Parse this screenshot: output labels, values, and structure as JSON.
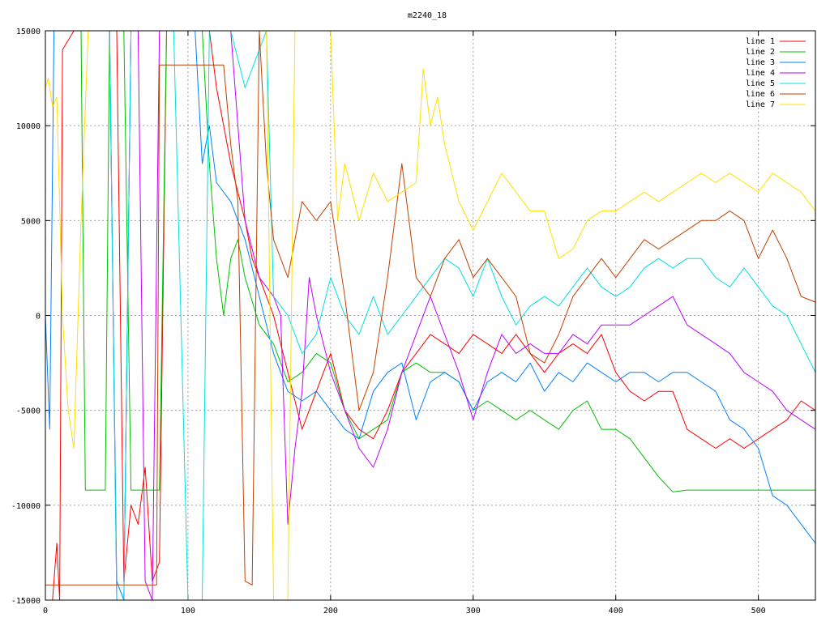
{
  "chart_data": {
    "type": "line",
    "title": "m2240_18",
    "xlabel": "",
    "ylabel": "",
    "xlim": [
      0,
      540
    ],
    "ylim": [
      -15000,
      15000
    ],
    "xticks": [
      0,
      100,
      200,
      300,
      400,
      500
    ],
    "yticks": [
      -15000,
      -10000,
      -5000,
      0,
      5000,
      10000,
      15000
    ],
    "xtick_labels": [
      "0",
      "100",
      "200",
      "300",
      "400",
      "500"
    ],
    "ytick_labels": [
      "-15000",
      "-10000",
      "-5000",
      "0",
      "5000",
      "10000",
      "15000"
    ],
    "grid": true,
    "legend_position": "top-right",
    "series": [
      {
        "name": "line 1",
        "color": "#ff0000",
        "x": [
          0,
          5,
          8,
          10,
          12,
          20,
          30,
          40,
          50,
          55,
          60,
          65,
          70,
          75,
          80,
          85,
          90,
          95,
          100,
          110,
          115,
          120,
          130,
          140,
          145,
          150,
          160,
          170,
          180,
          190,
          200,
          210,
          220,
          230,
          240,
          250,
          260,
          270,
          280,
          290,
          300,
          310,
          320,
          330,
          340,
          350,
          360,
          370,
          380,
          390,
          400,
          410,
          420,
          430,
          440,
          450,
          460,
          470,
          480,
          490,
          500,
          510,
          520,
          530,
          540
        ],
        "y": [
          -15000,
          -15000,
          -12000,
          -15000,
          14000,
          15000,
          15000,
          15000,
          15000,
          -14000,
          -10000,
          -11000,
          -8000,
          -14000,
          -13000,
          15000,
          15000,
          15000,
          15000,
          15000,
          15000,
          12000,
          8000,
          5000,
          3000,
          2000,
          0,
          -3000,
          -6000,
          -4000,
          -2000,
          -5000,
          -6000,
          -6500,
          -5000,
          -3000,
          -2000,
          -1000,
          -1500,
          -2000,
          -1000,
          -1500,
          -2000,
          -1000,
          -2000,
          -3000,
          -2000,
          -1500,
          -2000,
          -1000,
          -3000,
          -4000,
          -4500,
          -4000,
          -4000,
          -6000,
          -6500,
          -7000,
          -6500,
          -7000,
          -6500,
          -6000,
          -5500,
          -4500,
          -5000
        ]
      },
      {
        "name": "line 2",
        "color": "#00c000",
        "x": [
          0,
          5,
          10,
          15,
          20,
          25,
          28,
          35,
          42,
          45,
          50,
          55,
          60,
          65,
          70,
          75,
          80,
          85,
          90,
          95,
          100,
          105,
          110,
          115,
          120,
          125,
          130,
          135,
          140,
          150,
          160,
          170,
          180,
          190,
          200,
          210,
          220,
          230,
          240,
          250,
          260,
          270,
          280,
          290,
          300,
          310,
          320,
          330,
          340,
          350,
          360,
          370,
          380,
          390,
          400,
          410,
          420,
          430,
          440,
          450,
          460,
          480,
          500,
          520,
          540
        ],
        "y": [
          15000,
          15000,
          15000,
          15000,
          15000,
          15000,
          -9200,
          -9200,
          -9200,
          15000,
          15000,
          15000,
          -9200,
          -9200,
          -9200,
          -9200,
          -9200,
          15000,
          15000,
          15000,
          15000,
          15000,
          15000,
          8000,
          3000,
          0,
          3000,
          4000,
          2000,
          -500,
          -1500,
          -3500,
          -3000,
          -2000,
          -2500,
          -5000,
          -6500,
          -6000,
          -5500,
          -3000,
          -2500,
          -3000,
          -3000,
          -3500,
          -5000,
          -4500,
          -5000,
          -5500,
          -5000,
          -5500,
          -6000,
          -5000,
          -4500,
          -6000,
          -6000,
          -6500,
          -7500,
          -8500,
          -9300,
          -9200,
          -9200,
          -9200,
          -9200,
          -9200,
          -9200
        ]
      },
      {
        "name": "line 3",
        "color": "#0080ff",
        "x": [
          0,
          3,
          6,
          10,
          20,
          30,
          40,
          45,
          50,
          55,
          60,
          70,
          80,
          90,
          100,
          105,
          110,
          115,
          120,
          130,
          140,
          150,
          160,
          170,
          180,
          190,
          200,
          210,
          220,
          230,
          240,
          250,
          260,
          270,
          280,
          290,
          300,
          310,
          320,
          330,
          340,
          350,
          360,
          370,
          380,
          390,
          400,
          410,
          420,
          430,
          440,
          450,
          460,
          470,
          480,
          490,
          500,
          510,
          520,
          530,
          540
        ],
        "y": [
          0,
          -6000,
          15000,
          15000,
          15000,
          15000,
          15000,
          15000,
          -14000,
          -15000,
          15000,
          15000,
          15000,
          15000,
          15000,
          15000,
          8000,
          10000,
          7000,
          6000,
          4000,
          1000,
          -2000,
          -4000,
          -4500,
          -4000,
          -5000,
          -6000,
          -6500,
          -4000,
          -3000,
          -2500,
          -5500,
          -3500,
          -3000,
          -3500,
          -5000,
          -3500,
          -3000,
          -3500,
          -2500,
          -4000,
          -3000,
          -3500,
          -2500,
          -3000,
          -3500,
          -3000,
          -3000,
          -3500,
          -3000,
          -3000,
          -3500,
          -4000,
          -5500,
          -6000,
          -7000,
          -9500,
          -10000,
          -11000,
          -12000
        ]
      },
      {
        "name": "line 4",
        "color": "#c000ff",
        "x": [
          0,
          10,
          20,
          30,
          40,
          45,
          50,
          55,
          60,
          65,
          70,
          75,
          80,
          85,
          90,
          95,
          100,
          110,
          120,
          130,
          140,
          150,
          160,
          165,
          170,
          175,
          180,
          185,
          190,
          200,
          210,
          220,
          230,
          240,
          250,
          260,
          270,
          280,
          290,
          300,
          310,
          320,
          330,
          340,
          350,
          360,
          370,
          380,
          390,
          400,
          410,
          420,
          430,
          440,
          450,
          460,
          470,
          480,
          490,
          500,
          510,
          520,
          530,
          540
        ],
        "y": [
          15000,
          15000,
          15000,
          15000,
          15000,
          15000,
          -15000,
          -15000,
          15000,
          15000,
          -14000,
          -15000,
          15000,
          15000,
          15000,
          15000,
          15000,
          15000,
          15000,
          15000,
          5000,
          2000,
          1000,
          0,
          -11000,
          -7000,
          -4000,
          2000,
          0,
          -3000,
          -5000,
          -7000,
          -8000,
          -6000,
          -3000,
          -1000,
          1000,
          -1000,
          -3000,
          -5500,
          -3000,
          -1000,
          -2000,
          -1500,
          -2000,
          -2000,
          -1000,
          -1500,
          -500,
          -500,
          -500,
          0,
          500,
          1000,
          -500,
          -1000,
          -1500,
          -2000,
          -3000,
          -3500,
          -4000,
          -5000,
          -5500,
          -6000
        ]
      },
      {
        "name": "line 5",
        "color": "#00e0e0",
        "x": [
          0,
          20,
          40,
          45,
          50,
          55,
          60,
          70,
          80,
          90,
          100,
          105,
          110,
          115,
          120,
          130,
          140,
          150,
          155,
          160,
          170,
          180,
          190,
          200,
          210,
          220,
          230,
          240,
          250,
          260,
          270,
          280,
          290,
          300,
          310,
          320,
          330,
          340,
          350,
          360,
          370,
          380,
          390,
          400,
          410,
          420,
          430,
          440,
          450,
          460,
          470,
          480,
          490,
          500,
          510,
          520,
          530,
          540
        ],
        "y": [
          15000,
          15000,
          15000,
          15000,
          -15000,
          -15000,
          15000,
          15000,
          15000,
          15000,
          -15000,
          -15000,
          -15000,
          15000,
          15000,
          15000,
          12000,
          14000,
          15000,
          1000,
          0,
          -2000,
          -1000,
          2000,
          0,
          -1000,
          1000,
          -1000,
          0,
          1000,
          2000,
          3000,
          2500,
          1000,
          3000,
          1000,
          -500,
          500,
          1000,
          500,
          1500,
          2500,
          1500,
          1000,
          1500,
          2500,
          3000,
          2500,
          3000,
          3000,
          2000,
          1500,
          2500,
          1500,
          500,
          0,
          -1500,
          -3000
        ]
      },
      {
        "name": "line 6",
        "color": "#c04000",
        "x": [
          0,
          10,
          20,
          30,
          40,
          50,
          60,
          70,
          78,
          80,
          90,
          100,
          110,
          120,
          125,
          130,
          135,
          140,
          145,
          150,
          155,
          160,
          170,
          180,
          190,
          200,
          210,
          220,
          230,
          240,
          250,
          260,
          270,
          280,
          290,
          300,
          310,
          320,
          330,
          340,
          350,
          360,
          370,
          380,
          390,
          400,
          410,
          420,
          430,
          440,
          450,
          460,
          470,
          480,
          490,
          500,
          510,
          520,
          530,
          540
        ],
        "y": [
          -14200,
          -14200,
          -14200,
          -14200,
          -14200,
          -14200,
          -14200,
          -14200,
          -14200,
          13200,
          13200,
          13200,
          13200,
          13200,
          13200,
          9000,
          6000,
          -14000,
          -14200,
          15000,
          8000,
          4000,
          2000,
          6000,
          5000,
          6000,
          1000,
          -5000,
          -3000,
          2000,
          8000,
          2000,
          1000,
          3000,
          4000,
          2000,
          3000,
          2000,
          1000,
          -2000,
          -2500,
          -1000,
          1000,
          2000,
          3000,
          2000,
          3000,
          4000,
          3500,
          4000,
          4500,
          5000,
          5000,
          5500,
          5000,
          3000,
          4500,
          3000,
          1000,
          700
        ]
      },
      {
        "name": "line 7",
        "color": "#ffe000",
        "x": [
          0,
          2,
          5,
          8,
          12,
          16,
          20,
          25,
          30,
          50,
          80,
          100,
          110,
          120,
          130,
          140,
          150,
          155,
          160,
          165,
          170,
          175,
          180,
          190,
          200,
          205,
          210,
          220,
          230,
          240,
          250,
          260,
          265,
          270,
          275,
          280,
          290,
          300,
          310,
          320,
          330,
          340,
          350,
          360,
          370,
          380,
          390,
          400,
          410,
          420,
          430,
          440,
          450,
          460,
          470,
          480,
          490,
          500,
          510,
          520,
          530,
          540
        ],
        "y": [
          12000,
          12500,
          11000,
          11500,
          0,
          -5000,
          -7000,
          5000,
          15000,
          15000,
          15000,
          15000,
          15000,
          15000,
          15000,
          15000,
          15000,
          15000,
          -15000,
          -15000,
          -15000,
          15000,
          15000,
          15000,
          15000,
          5000,
          8000,
          5000,
          7500,
          6000,
          6500,
          7000,
          13000,
          10000,
          11500,
          9000,
          6000,
          4500,
          6000,
          7500,
          6500,
          5500,
          5500,
          3000,
          3500,
          5000,
          5500,
          5500,
          6000,
          6500,
          6000,
          6500,
          7000,
          7500,
          7000,
          7500,
          7000,
          6500,
          7500,
          7000,
          6500,
          5500
        ]
      }
    ]
  }
}
